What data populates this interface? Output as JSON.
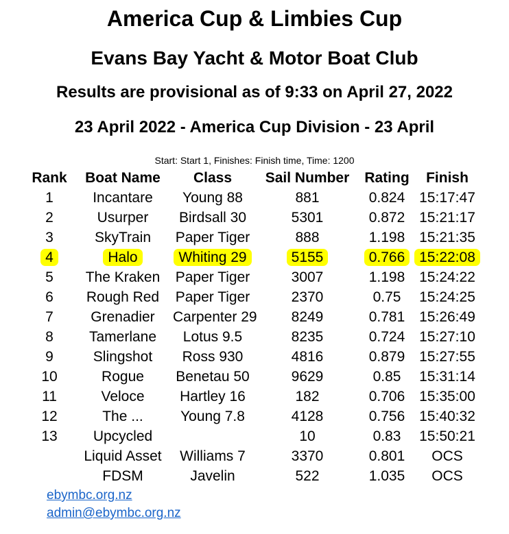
{
  "header": {
    "title": "America Cup & Limbies Cup",
    "club": "Evans Bay Yacht & Motor Boat Club",
    "provisional": "Results are provisional as of 9:33 on April 27, 2022",
    "division": "23 April 2022 - America Cup Division - 23 April",
    "race_info": "Start: Start 1, Finishes: Finish time, Time: 1200"
  },
  "table": {
    "columns": [
      "Rank",
      "Boat Name",
      "Class",
      "Sail Number",
      "Rating",
      "Finish"
    ],
    "rows": [
      {
        "rank": "1",
        "boat": "Incantare",
        "class": "Young 88",
        "sail": "881",
        "rating": "0.824",
        "finish": "15:17:47",
        "highlighted": false
      },
      {
        "rank": "2",
        "boat": "Usurper",
        "class": "Birdsall 30",
        "sail": "5301",
        "rating": "0.872",
        "finish": "15:21:17",
        "highlighted": false
      },
      {
        "rank": "3",
        "boat": "SkyTrain",
        "class": "Paper Tiger",
        "sail": "888",
        "rating": "1.198",
        "finish": "15:21:35",
        "highlighted": false
      },
      {
        "rank": "4",
        "boat": "Halo",
        "class": "Whiting 29",
        "sail": "5155",
        "rating": "0.766",
        "finish": "15:22:08",
        "highlighted": true
      },
      {
        "rank": "5",
        "boat": "The Kraken",
        "class": "Paper Tiger",
        "sail": "3007",
        "rating": "1.198",
        "finish": "15:24:22",
        "highlighted": false
      },
      {
        "rank": "6",
        "boat": "Rough Red",
        "class": "Paper Tiger",
        "sail": "2370",
        "rating": "0.75",
        "finish": "15:24:25",
        "highlighted": false
      },
      {
        "rank": "7",
        "boat": "Grenadier",
        "class": "Carpenter 29",
        "sail": "8249",
        "rating": "0.781",
        "finish": "15:26:49",
        "highlighted": false
      },
      {
        "rank": "8",
        "boat": "Tamerlane",
        "class": "Lotus 9.5",
        "sail": "8235",
        "rating": "0.724",
        "finish": "15:27:10",
        "highlighted": false
      },
      {
        "rank": "9",
        "boat": "Slingshot",
        "class": "Ross 930",
        "sail": "4816",
        "rating": "0.879",
        "finish": "15:27:55",
        "highlighted": false
      },
      {
        "rank": "10",
        "boat": "Rogue",
        "class": "Benetau 50",
        "sail": "9629",
        "rating": "0.85",
        "finish": "15:31:14",
        "highlighted": false
      },
      {
        "rank": "11",
        "boat": "Veloce",
        "class": "Hartley 16",
        "sail": "182",
        "rating": "0.706",
        "finish": "15:35:00",
        "highlighted": false
      },
      {
        "rank": "12",
        "boat": "The ...",
        "class": "Young 7.8",
        "sail": "4128",
        "rating": "0.756",
        "finish": "15:40:32",
        "highlighted": false
      },
      {
        "rank": "13",
        "boat": "Upcycled",
        "class": "",
        "sail": "10",
        "rating": "0.83",
        "finish": "15:50:21",
        "highlighted": false
      },
      {
        "rank": "",
        "boat": "Liquid Asset",
        "class": "Williams 7",
        "sail": "3370",
        "rating": "0.801",
        "finish": "OCS",
        "highlighted": false
      },
      {
        "rank": "",
        "boat": "FDSM",
        "class": "Javelin",
        "sail": "522",
        "rating": "1.035",
        "finish": "OCS",
        "highlighted": false
      }
    ]
  },
  "footer": {
    "links": [
      {
        "label": "ebymbc.org.nz"
      },
      {
        "label": "admin@ebymbc.org.nz"
      }
    ]
  },
  "colors": {
    "highlight": "#FFFF00",
    "link": "#1B65C9",
    "text": "#000000"
  }
}
